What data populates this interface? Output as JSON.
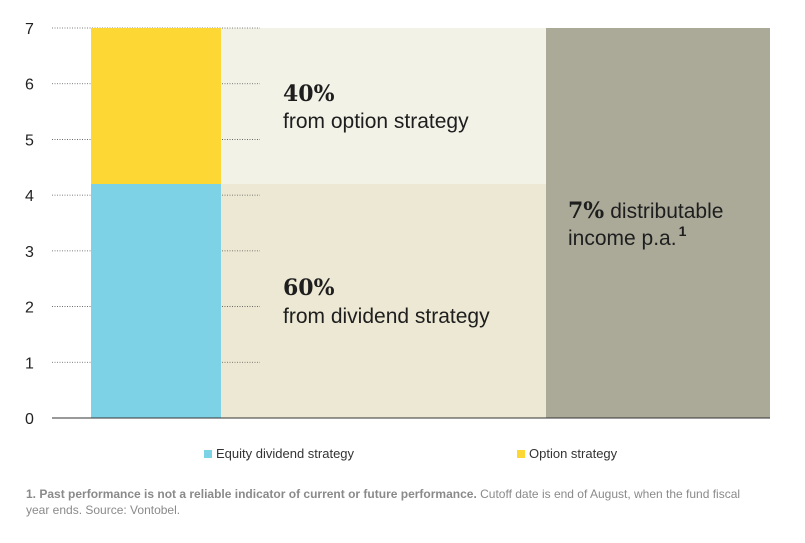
{
  "chart_data": {
    "type": "bar",
    "ylim": [
      0,
      7
    ],
    "y_ticks": [
      0,
      1,
      2,
      3,
      4,
      5,
      6,
      7
    ],
    "grid": true,
    "series": [
      {
        "name": "Equity dividend strategy",
        "value": 4.2,
        "color": "#7dd3e5"
      },
      {
        "name": "Option strategy",
        "value": 2.8,
        "color": "#fdd835"
      }
    ],
    "total": 7,
    "total_color": "#abaa99",
    "panel_colors": {
      "upper": "#f3f2e7",
      "lower": "#ede8d3"
    },
    "annotations": {
      "option_pct": "40%",
      "option_text": "from option strategy",
      "dividend_pct": "60%",
      "dividend_text": "from dividend strategy",
      "total_pct": "7%",
      "total_text_1": "distributable",
      "total_text_2": "income p.a.",
      "total_sup": "1"
    },
    "legend_position": "bottom"
  },
  "legend": {
    "equity": "Equity dividend strategy",
    "option": "Option strategy"
  },
  "footnote": {
    "bold": "1. Past performance is not a reliable indicator of current or future performance.",
    "normal": " Cutoff date is end of August, when the fund fiscal year ends. Source: Vontobel."
  }
}
